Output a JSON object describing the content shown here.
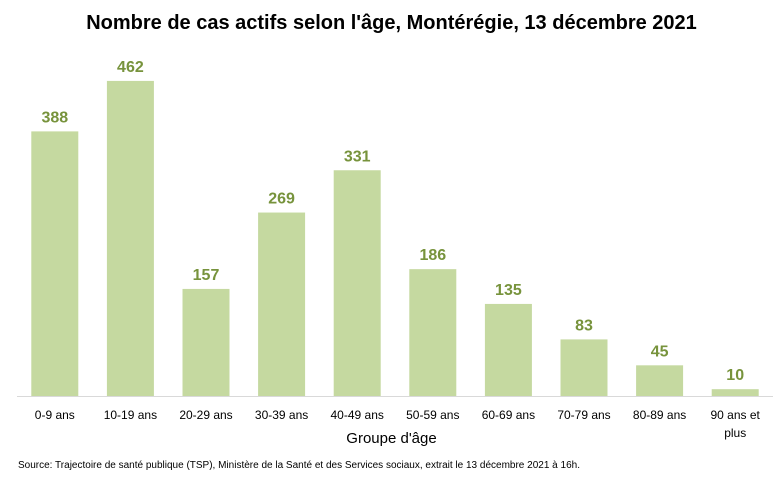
{
  "chart_data": {
    "type": "bar",
    "title": "Nombre de cas actifs selon l'âge, Montérégie, 13 décembre 2021",
    "xlabel": "Groupe d'âge",
    "ylabel": "",
    "categories": [
      "0-9 ans",
      "10-19 ans",
      "20-29 ans",
      "30-39 ans",
      "40-49 ans",
      "50-59 ans",
      "60-69 ans",
      "70-79 ans",
      "80-89 ans",
      "90 ans et plus"
    ],
    "values": [
      388,
      462,
      157,
      269,
      331,
      186,
      135,
      83,
      45,
      10
    ],
    "ylim": [
      0,
      500
    ],
    "grid": false,
    "legend": "none",
    "bar_color": "#c5d9a0",
    "label_color": "#77933c"
  },
  "source": "Source: Trajectoire de santé publique (TSP), Ministère de la Santé et des Services sociaux, extrait le 13 décembre 2021 à 16h."
}
